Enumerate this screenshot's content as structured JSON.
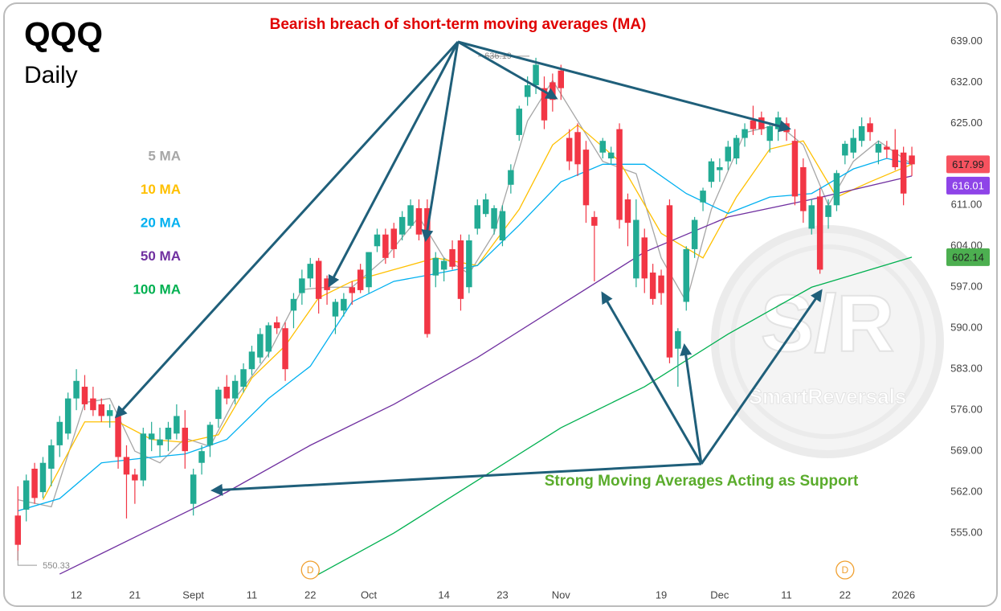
{
  "chart_data": {
    "type": "candlestick",
    "title": "QQQ",
    "subtitle": "Daily",
    "annotation_top": "Bearish breach of short-term moving averages (MA)",
    "annotation_bottom": "Strong Moving Averages Acting as Support",
    "up_color": "#22ab94",
    "down_color": "#f23645",
    "xlim": [
      -0.7,
      109.4
    ],
    "ylim": [
      546.5,
      644
    ],
    "xticks": [
      {
        "value": 7,
        "label": "12"
      },
      {
        "value": 14,
        "label": "21"
      },
      {
        "value": 21,
        "label": "Sept"
      },
      {
        "value": 28,
        "label": "11"
      },
      {
        "value": 35,
        "label": "22"
      },
      {
        "value": 42,
        "label": "Oct"
      },
      {
        "value": 51,
        "label": "14"
      },
      {
        "value": 58,
        "label": "23"
      },
      {
        "value": 65,
        "label": "Nov"
      },
      {
        "value": 77,
        "label": "19"
      },
      {
        "value": 84,
        "label": "Dec"
      },
      {
        "value": 92,
        "label": "11"
      },
      {
        "value": 99,
        "label": "22"
      },
      {
        "value": 106,
        "label": "2026"
      }
    ],
    "yticks": [
      {
        "value": 555,
        "label": "555.00"
      },
      {
        "value": 562,
        "label": "562.00"
      },
      {
        "value": 569,
        "label": "569.00"
      },
      {
        "value": 576,
        "label": "576.00"
      },
      {
        "value": 583,
        "label": "583.00"
      },
      {
        "value": 590,
        "label": "590.00"
      },
      {
        "value": 597,
        "label": "597.00"
      },
      {
        "value": 604,
        "label": "604.00"
      },
      {
        "value": 611,
        "label": "611.00"
      },
      {
        "value": 618,
        "label": "618.00"
      },
      {
        "value": 625,
        "label": "625.00"
      },
      {
        "value": 632,
        "label": "632.00"
      },
      {
        "value": 639,
        "label": "639.00"
      }
    ],
    "open": [
      558,
      559,
      566,
      562,
      566,
      570,
      572,
      578,
      580,
      578,
      577,
      575,
      575,
      568,
      565,
      564,
      571,
      570,
      571,
      572,
      573,
      560,
      567,
      570,
      574.5,
      580,
      578,
      580,
      583,
      585,
      586,
      591,
      590,
      593,
      596,
      598.5,
      601.5,
      598.5,
      592,
      593,
      597,
      600,
      597,
      604,
      606,
      607,
      606,
      607.5,
      610.5,
      610.5,
      599,
      600,
      603.5,
      605,
      597,
      607,
      609.5,
      607,
      605,
      614.5,
      623,
      629.5,
      631.5,
      631,
      632,
      634,
      622.5,
      623.5,
      620.5,
      609,
      620,
      619,
      624,
      612,
      598.5,
      605.5,
      599.5,
      599,
      611,
      586.5,
      594.5,
      603.5,
      611.5,
      615,
      617,
      618.5,
      619,
      622.5,
      625.5,
      626,
      622,
      624,
      625,
      622,
      617.5,
      607,
      612.5,
      609,
      611,
      619.5,
      620,
      622,
      625,
      620,
      621,
      620.5,
      620,
      619.5
    ],
    "high": [
      563,
      565,
      567,
      568,
      571,
      575,
      579,
      583,
      582,
      580,
      578,
      577,
      576,
      570,
      566,
      573,
      574,
      573,
      574,
      577,
      576,
      566,
      570,
      574,
      580,
      582,
      582,
      584,
      587,
      590,
      591,
      592,
      591,
      596,
      600,
      602,
      602,
      599,
      595,
      596,
      598,
      601,
      603,
      607,
      607,
      608,
      610,
      612,
      612,
      612,
      603,
      602,
      605,
      606,
      606,
      612,
      613,
      611,
      611,
      618,
      628,
      633,
      636.19,
      633,
      633.5,
      635,
      624,
      625,
      622,
      610,
      622.5,
      621,
      625,
      613,
      612,
      607,
      601,
      600,
      612,
      590,
      604,
      609,
      614,
      619,
      619,
      622,
      623,
      625,
      628,
      627,
      625,
      627,
      626,
      624,
      619,
      612,
      614,
      612,
      617,
      622,
      624,
      626,
      626,
      622,
      622,
      624,
      621,
      621
    ],
    "low": [
      550.33,
      557,
      560,
      561,
      563,
      568,
      571,
      576,
      576,
      575,
      574,
      573,
      566,
      557.5,
      560,
      563,
      569,
      568,
      569,
      571,
      566,
      558,
      565,
      568,
      573,
      577,
      577,
      579,
      582,
      584,
      585,
      589,
      581,
      590,
      594,
      597,
      592.5,
      594,
      589,
      592,
      594,
      596,
      596,
      603,
      601,
      602,
      605,
      607,
      605,
      588.4,
      597,
      598,
      600,
      593,
      596,
      606,
      609,
      606,
      604,
      613,
      622,
      628,
      630,
      624,
      627,
      629,
      617,
      616,
      608,
      598,
      619,
      618,
      607,
      604,
      597,
      596,
      594,
      594,
      584,
      580,
      593,
      602,
      610,
      614,
      615,
      617,
      618,
      621,
      623,
      623,
      620,
      622,
      622,
      611,
      608,
      606,
      599.3,
      607,
      610,
      618,
      619,
      621,
      622,
      618,
      619,
      617,
      611,
      616
    ],
    "close": [
      553,
      564,
      561,
      567,
      570,
      574,
      578,
      581,
      577,
      576,
      575,
      576,
      568,
      565,
      564,
      572,
      572,
      571,
      573,
      575,
      569,
      565,
      569,
      573.5,
      579.5,
      578,
      581,
      583,
      586,
      589,
      590.5,
      590,
      583,
      595,
      598.5,
      601,
      595,
      596.5,
      594.5,
      595,
      596,
      596.5,
      603,
      606,
      602,
      603.5,
      609,
      611,
      606,
      589,
      602,
      601.5,
      600.5,
      595,
      605,
      611,
      612,
      610.5,
      610,
      617,
      627.5,
      631.5,
      635,
      625.5,
      629,
      631,
      618.5,
      618,
      611,
      607.5,
      622,
      620,
      608.5,
      608,
      608.5,
      598.5,
      595,
      596,
      585,
      589.5,
      603.5,
      608.5,
      613.5,
      618.5,
      617.5,
      621,
      622.5,
      624,
      624,
      624,
      624.5,
      626,
      623.5,
      612.5,
      610,
      611,
      600,
      611,
      616.5,
      621.5,
      622.5,
      624.5,
      623.5,
      621.5,
      620.5,
      617.5,
      613,
      617.99
    ],
    "series": [
      {
        "name": "5 MA",
        "color": "#a6a6a6",
        "x": [
          0,
          4,
          8,
          11,
          14,
          17,
          20,
          23,
          26,
          30,
          34,
          37,
          40,
          44,
          48,
          51,
          54,
          57,
          61,
          64,
          67,
          70,
          74,
          77,
          80,
          83,
          87,
          91,
          94,
          97,
          100,
          103,
          107
        ],
        "values": [
          560.7,
          559.5,
          577.3,
          578,
          569,
          567,
          571.2,
          569.8,
          578,
          585.6,
          596.6,
          597,
          597,
          602,
          609,
          602,
          599.3,
          606.2,
          625.4,
          632.3,
          625.4,
          618.5,
          616.4,
          602,
          594.5,
          610.3,
          623.4,
          624.8,
          621.3,
          611,
          618.5,
          622,
          618
        ]
      },
      {
        "name": "10 MA",
        "color": "#ffc000",
        "x": [
          3,
          8,
          12,
          16,
          20,
          24,
          28,
          32,
          36,
          40,
          45,
          50,
          55,
          60,
          64,
          67,
          72,
          77,
          82,
          86,
          90,
          94,
          98,
          102,
          107
        ],
        "values": [
          560.7,
          574,
          574,
          571,
          570.5,
          571.8,
          581.5,
          587,
          595.2,
          598,
          600,
          602,
          600.7,
          610.3,
          621.3,
          624.7,
          618.5,
          606.2,
          602,
          612.4,
          620.6,
          622,
          612.4,
          615,
          618
        ]
      },
      {
        "name": "20 MA",
        "color": "#00b0f0",
        "x": [
          0,
          5,
          10,
          15,
          20,
          25,
          30,
          35,
          40,
          45,
          50,
          55,
          60,
          65,
          70,
          75,
          80,
          85,
          90,
          95,
          100,
          104,
          107
        ],
        "values": [
          558.8,
          560.9,
          567,
          567.8,
          568.5,
          571,
          578,
          583.5,
          594.5,
          598,
          599.3,
          600.7,
          607.6,
          615,
          618,
          618,
          613,
          609.6,
          612.4,
          613,
          617.2,
          619,
          618
        ]
      },
      {
        "name": "50 MA",
        "color": "#7030a0",
        "x": [
          5,
          15,
          25,
          35,
          45,
          55,
          65,
          75,
          85,
          95,
          107
        ],
        "values": [
          548,
          555,
          562,
          570,
          577,
          585,
          594,
          603,
          609,
          612,
          616.01
        ]
      },
      {
        "name": "100 MA",
        "color": "#00b050",
        "x": [
          35,
          45,
          55,
          65,
          75,
          85,
          95,
          107
        ],
        "values": [
          547.2,
          555,
          564,
          573,
          580,
          589,
          597,
          602.14
        ]
      }
    ],
    "price_tags": {
      "values": [
        617.99,
        616.01,
        602.14
      ],
      "colors": [
        "#f7525f",
        "#8e44e8",
        "#4caf50"
      ]
    },
    "high_marker": 636.19,
    "low_marker": 550.33,
    "events": {
      "x": [
        35,
        99
      ],
      "labels": [
        "D",
        "D"
      ]
    },
    "watermark": {
      "mark": "S/R",
      "text": "SmartReversals"
    }
  }
}
